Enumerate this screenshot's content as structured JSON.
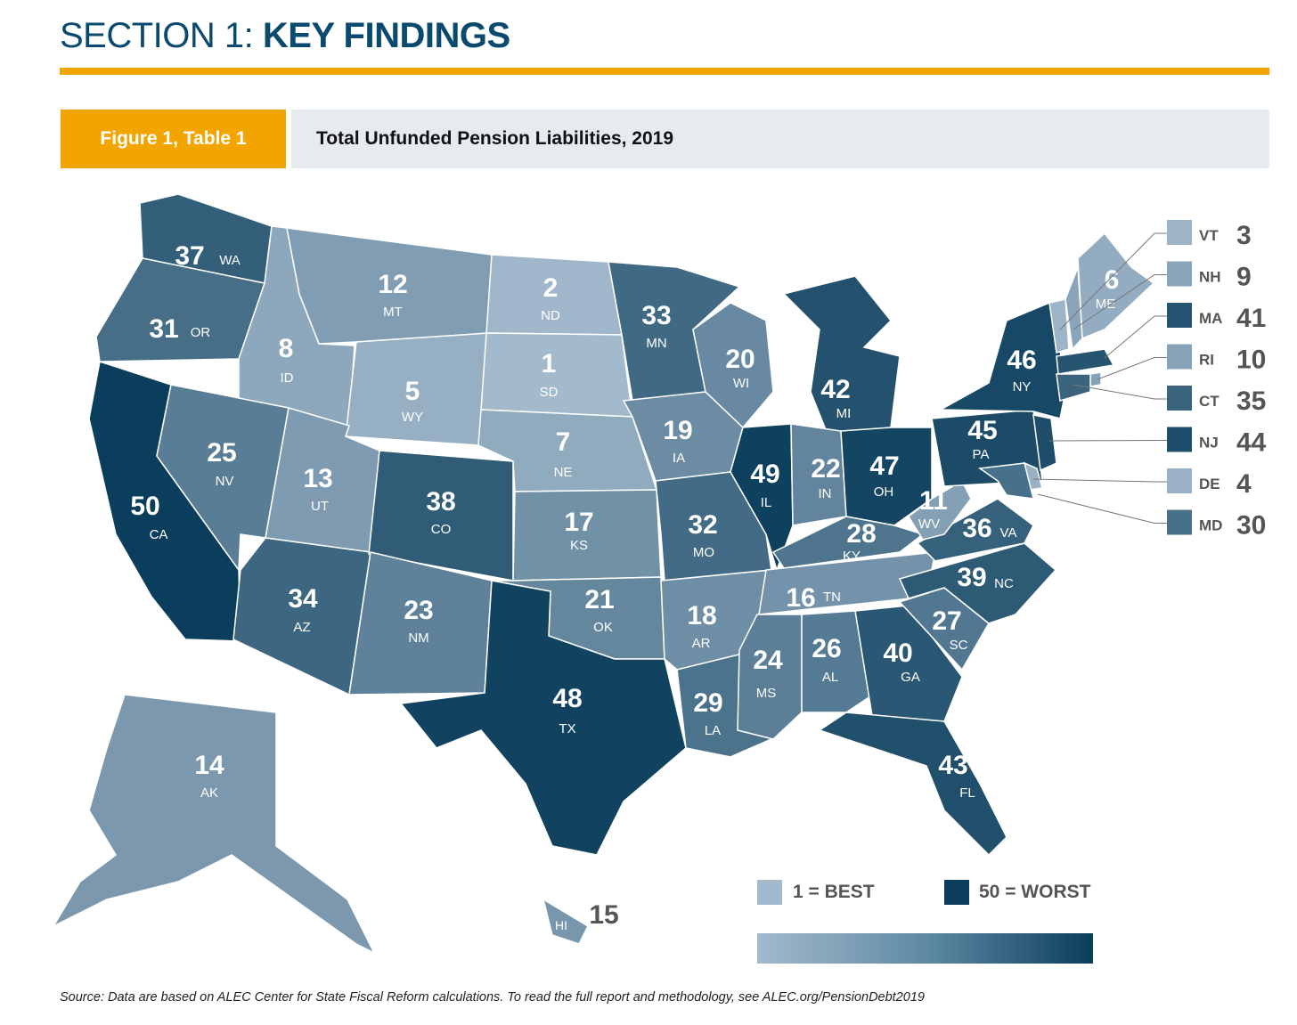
{
  "header": {
    "section_light": "SECTION 1: ",
    "section_bold": "KEY FINDINGS",
    "figure_tag": "Figure 1, Table 1",
    "figure_title": "Total Unfunded Pension Liabilities, 2019"
  },
  "legend": {
    "best_label": "1 = BEST",
    "worst_label": "50 = WORST",
    "best_color": "#a3b9cc",
    "worst_color": "#0b3e5c"
  },
  "source": "Source: Data are based on ALEC Center for State Fiscal Reform calculations. To read the full report and methodology, see ALEC.org/PensionDebt2019",
  "chart_data": {
    "type": "choropleth",
    "title": "Total Unfunded Pension Liabilities, 2019",
    "scale": {
      "min": 1,
      "max": 50,
      "min_label": "1 = BEST",
      "max_label": "50 = WORST"
    },
    "states": [
      {
        "abbr": "WA",
        "rank": 37
      },
      {
        "abbr": "OR",
        "rank": 31
      },
      {
        "abbr": "CA",
        "rank": 50
      },
      {
        "abbr": "ID",
        "rank": 8
      },
      {
        "abbr": "NV",
        "rank": 25
      },
      {
        "abbr": "MT",
        "rank": 12
      },
      {
        "abbr": "WY",
        "rank": 5
      },
      {
        "abbr": "UT",
        "rank": 13
      },
      {
        "abbr": "AZ",
        "rank": 34
      },
      {
        "abbr": "CO",
        "rank": 38
      },
      {
        "abbr": "NM",
        "rank": 23
      },
      {
        "abbr": "ND",
        "rank": 2
      },
      {
        "abbr": "SD",
        "rank": 1
      },
      {
        "abbr": "NE",
        "rank": 7
      },
      {
        "abbr": "KS",
        "rank": 17
      },
      {
        "abbr": "OK",
        "rank": 21
      },
      {
        "abbr": "TX",
        "rank": 48
      },
      {
        "abbr": "MN",
        "rank": 33
      },
      {
        "abbr": "IA",
        "rank": 19
      },
      {
        "abbr": "MO",
        "rank": 32
      },
      {
        "abbr": "AR",
        "rank": 18
      },
      {
        "abbr": "LA",
        "rank": 29
      },
      {
        "abbr": "WI",
        "rank": 20
      },
      {
        "abbr": "IL",
        "rank": 49
      },
      {
        "abbr": "MI",
        "rank": 42
      },
      {
        "abbr": "IN",
        "rank": 22
      },
      {
        "abbr": "OH",
        "rank": 47
      },
      {
        "abbr": "KY",
        "rank": 28
      },
      {
        "abbr": "TN",
        "rank": 16
      },
      {
        "abbr": "MS",
        "rank": 24
      },
      {
        "abbr": "AL",
        "rank": 26
      },
      {
        "abbr": "GA",
        "rank": 40
      },
      {
        "abbr": "FL",
        "rank": 43
      },
      {
        "abbr": "SC",
        "rank": 27
      },
      {
        "abbr": "NC",
        "rank": 39
      },
      {
        "abbr": "VA",
        "rank": 36
      },
      {
        "abbr": "WV",
        "rank": 11
      },
      {
        "abbr": "PA",
        "rank": 45
      },
      {
        "abbr": "NY",
        "rank": 46
      },
      {
        "abbr": "ME",
        "rank": 6
      },
      {
        "abbr": "AK",
        "rank": 14
      },
      {
        "abbr": "HI",
        "rank": 15
      }
    ],
    "callouts": [
      {
        "abbr": "VT",
        "rank": 3
      },
      {
        "abbr": "NH",
        "rank": 9
      },
      {
        "abbr": "MA",
        "rank": 41
      },
      {
        "abbr": "RI",
        "rank": 10
      },
      {
        "abbr": "CT",
        "rank": 35
      },
      {
        "abbr": "NJ",
        "rank": 44
      },
      {
        "abbr": "DE",
        "rank": 4
      },
      {
        "abbr": "MD",
        "rank": 30
      }
    ]
  }
}
